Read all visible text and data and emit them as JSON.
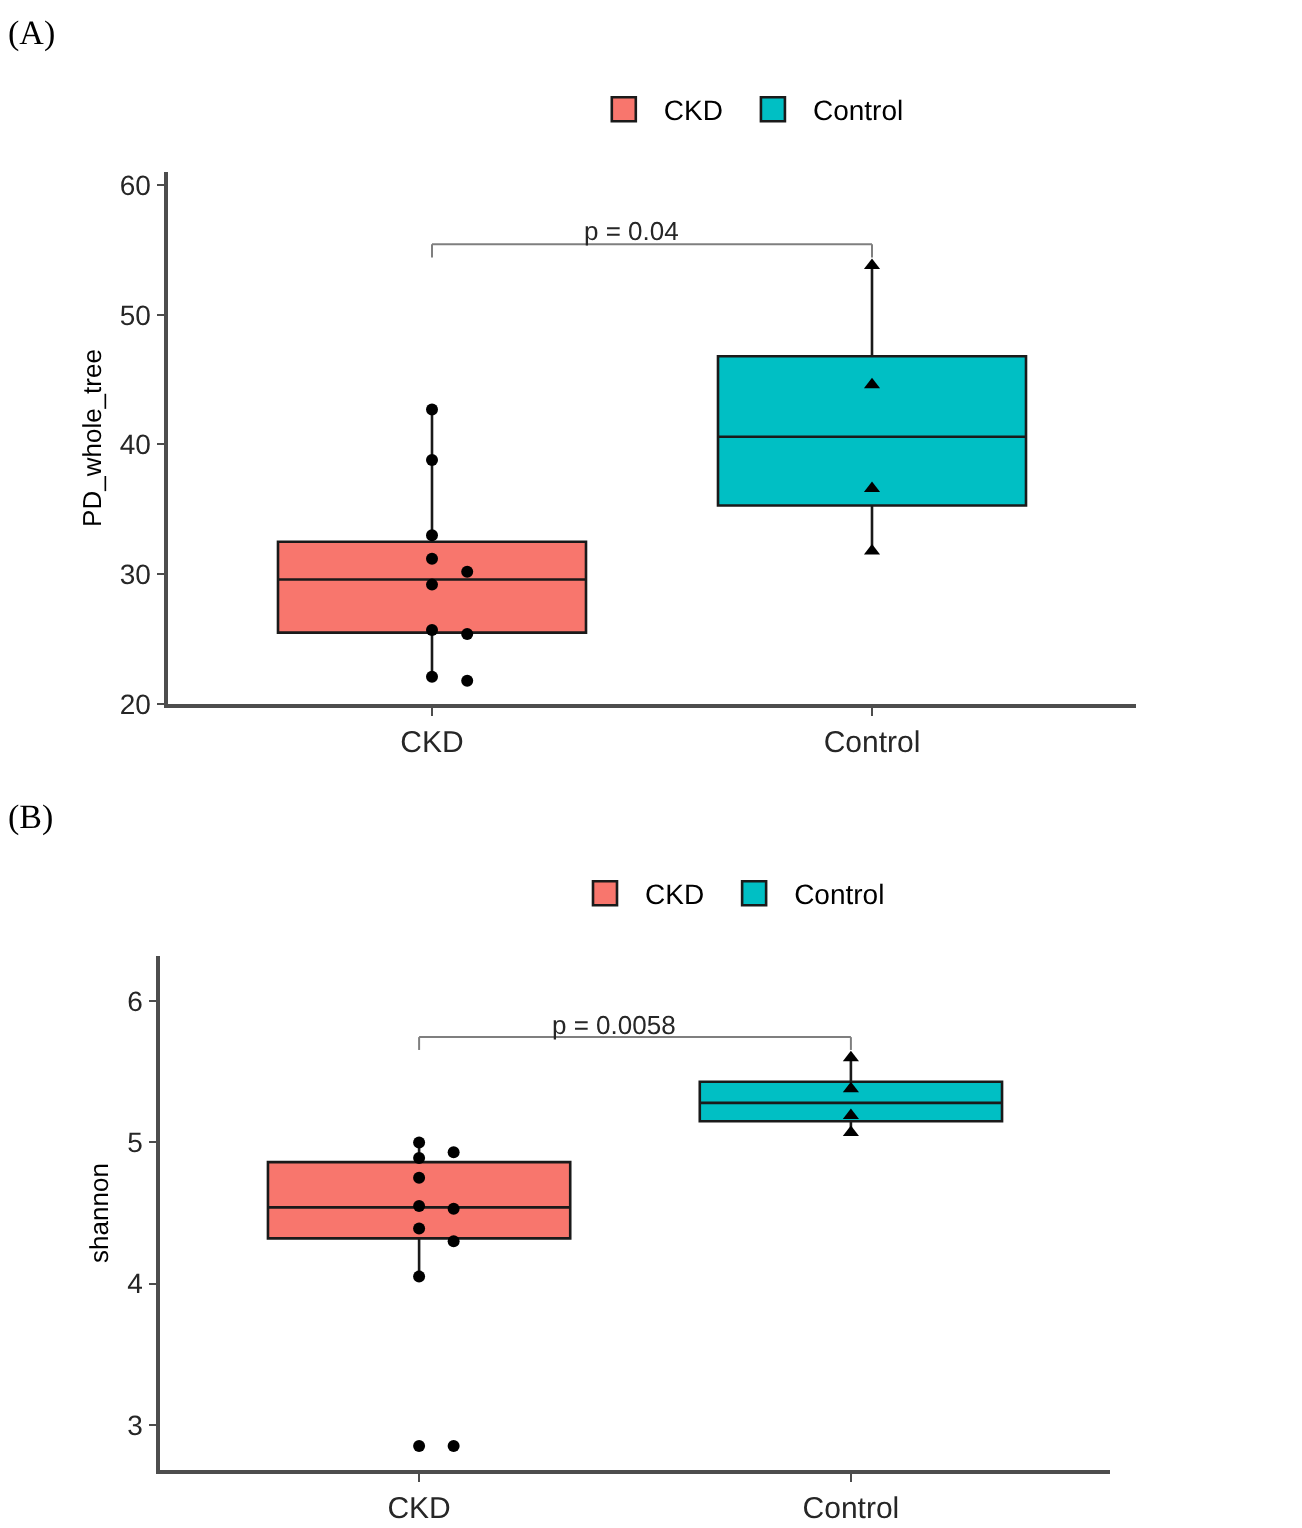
{
  "chart_data": [
    {
      "type": "box",
      "title": "(A)",
      "ylabel": "PD_whole_tree",
      "categories": [
        "CKD",
        "Control"
      ],
      "series": [
        {
          "name": "CKD",
          "color": "#f8766d",
          "boxes": [
            {
              "low": 21.8,
              "q1": 25.5,
              "median": 29.6,
              "q3": 32.5,
              "high": 42.7
            },
            null
          ]
        },
        {
          "name": "Control",
          "color": "#00bfc4",
          "boxes": [
            null,
            {
              "low": 31.8,
              "q1": 35.3,
              "median": 40.6,
              "q3": 46.8,
              "high": 53.8
            }
          ]
        },
        {
          "type": "scatter",
          "color": "#000000",
          "marker": "circle",
          "x": [
            "CKD",
            "CKD",
            "CKD",
            "CKD",
            "CKD",
            "CKD",
            "CKD",
            "CKD",
            "CKD",
            "CKD"
          ],
          "values": [
            42.7,
            38.8,
            33.0,
            31.2,
            30.2,
            29.2,
            25.7,
            25.4,
            22.1,
            21.8
          ]
        },
        {
          "type": "scatter",
          "color": "#000000",
          "marker": "triangle",
          "x": [
            "Control",
            "Control",
            "Control",
            "Control"
          ],
          "values": [
            53.8,
            44.6,
            36.6,
            31.8
          ]
        }
      ],
      "ylim": [
        20,
        61
      ],
      "yticks": [
        20,
        30,
        40,
        50,
        60
      ],
      "grid": false,
      "legend": "top",
      "annotations": [
        "p = 0.04"
      ]
    },
    {
      "type": "box",
      "title": "(B)",
      "ylabel": "shannon",
      "categories": [
        "CKD",
        "Control"
      ],
      "series": [
        {
          "name": "CKD",
          "color": "#f8766d",
          "boxes": [
            {
              "low": 4.05,
              "q1": 4.32,
              "median": 4.54,
              "q3": 4.86,
              "high": 5.0
            },
            null
          ]
        },
        {
          "name": "Control",
          "color": "#00bfc4",
          "boxes": [
            null,
            {
              "low": 5.07,
              "q1": 5.15,
              "median": 5.28,
              "q3": 5.43,
              "high": 5.6
            }
          ]
        },
        {
          "type": "scatter",
          "color": "#000000",
          "marker": "circle",
          "x": [
            "CKD",
            "CKD",
            "CKD",
            "CKD",
            "CKD",
            "CKD",
            "CKD",
            "CKD",
            "CKD",
            "CKD",
            "CKD"
          ],
          "values": [
            5.0,
            4.93,
            4.89,
            4.75,
            4.55,
            4.53,
            4.39,
            4.3,
            4.05,
            2.85,
            2.85
          ]
        },
        {
          "type": "scatter",
          "color": "#000000",
          "marker": "triangle",
          "x": [
            "Control",
            "Control",
            "Control",
            "Control"
          ],
          "values": [
            5.6,
            5.38,
            5.19,
            5.07
          ]
        }
      ],
      "ylim": [
        2.68,
        6.32
      ],
      "yticks": [
        3,
        4,
        5,
        6
      ],
      "grid": false,
      "legend": "top",
      "annotations": [
        "p = 0.0058"
      ]
    }
  ]
}
